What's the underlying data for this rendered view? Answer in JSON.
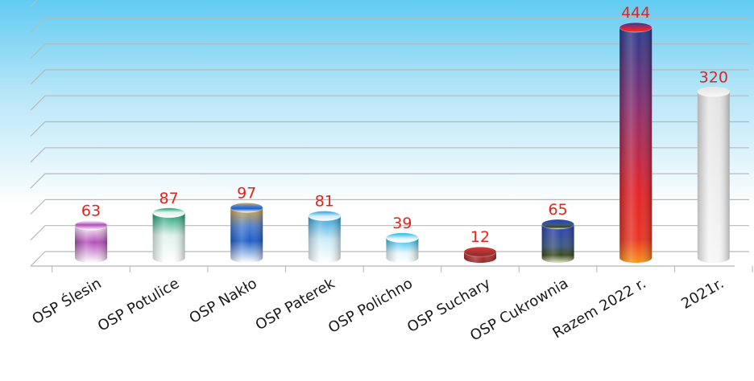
{
  "chart_data": {
    "type": "bar",
    "categories": [
      "OSP Ślesin",
      "OSP Potulice",
      "OSP Nakło",
      "OSP Paterek",
      "OSP Polichno",
      "OSP Suchary",
      "OSP Cukrownia",
      "Razem 2022 r.",
      "2021r."
    ],
    "values": [
      63,
      87,
      97,
      81,
      39,
      12,
      65,
      444,
      320
    ],
    "value_labels": [
      "63",
      "87",
      "97",
      "81",
      "39",
      "12",
      "65",
      "444",
      "320"
    ],
    "ylim": [
      0,
      500
    ],
    "grid": true,
    "legend": "none"
  }
}
